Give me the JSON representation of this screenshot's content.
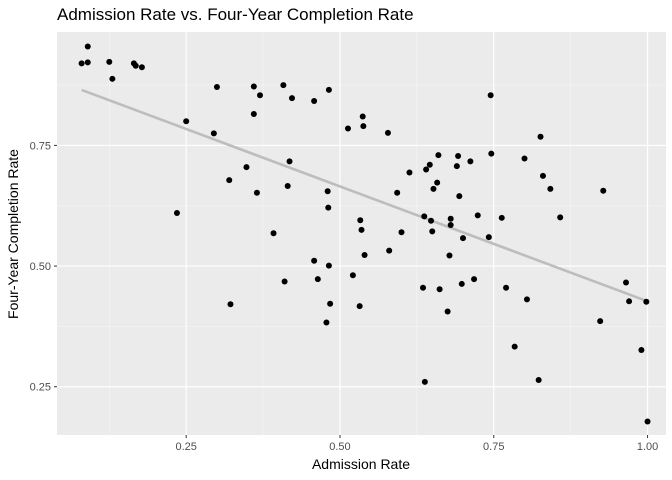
{
  "chart_data": {
    "type": "scatter",
    "title": "Admission Rate vs. Four-Year Completion Rate",
    "xlabel": "Admission Rate",
    "ylabel": "Four-Year Completion Rate",
    "xlim": [
      0.04,
      1.03
    ],
    "ylim": [
      0.15,
      0.985
    ],
    "x_ticks": [
      0.25,
      0.5,
      0.75,
      1.0
    ],
    "x_tick_labels": [
      "0.25",
      "0.50",
      "0.75",
      "1.00"
    ],
    "y_ticks": [
      0.25,
      0.5,
      0.75
    ],
    "y_tick_labels": [
      "0.25",
      "0.50",
      "0.75"
    ],
    "grid": true,
    "trend_line": {
      "x": [
        0.08,
        1.0
      ],
      "y": [
        0.865,
        0.427
      ]
    },
    "points": [
      [
        0.08,
        0.92
      ],
      [
        0.09,
        0.955
      ],
      [
        0.09,
        0.922
      ],
      [
        0.125,
        0.923
      ],
      [
        0.13,
        0.888
      ],
      [
        0.165,
        0.92
      ],
      [
        0.168,
        0.915
      ],
      [
        0.178,
        0.912
      ],
      [
        0.235,
        0.61
      ],
      [
        0.25,
        0.8
      ],
      [
        0.295,
        0.775
      ],
      [
        0.3,
        0.871
      ],
      [
        0.32,
        0.678
      ],
      [
        0.322,
        0.421
      ],
      [
        0.348,
        0.705
      ],
      [
        0.36,
        0.815
      ],
      [
        0.36,
        0.872
      ],
      [
        0.365,
        0.652
      ],
      [
        0.37,
        0.854
      ],
      [
        0.392,
        0.568
      ],
      [
        0.408,
        0.875
      ],
      [
        0.41,
        0.468
      ],
      [
        0.415,
        0.666
      ],
      [
        0.418,
        0.717
      ],
      [
        0.422,
        0.848
      ],
      [
        0.458,
        0.842
      ],
      [
        0.458,
        0.511
      ],
      [
        0.464,
        0.473
      ],
      [
        0.478,
        0.383
      ],
      [
        0.48,
        0.655
      ],
      [
        0.481,
        0.621
      ],
      [
        0.482,
        0.501
      ],
      [
        0.482,
        0.865
      ],
      [
        0.484,
        0.422
      ],
      [
        0.513,
        0.785
      ],
      [
        0.521,
        0.481
      ],
      [
        0.532,
        0.417
      ],
      [
        0.533,
        0.595
      ],
      [
        0.535,
        0.575
      ],
      [
        0.537,
        0.81
      ],
      [
        0.538,
        0.79
      ],
      [
        0.54,
        0.523
      ],
      [
        0.578,
        0.776
      ],
      [
        0.58,
        0.532
      ],
      [
        0.593,
        0.652
      ],
      [
        0.6,
        0.57
      ],
      [
        0.613,
        0.694
      ],
      [
        0.635,
        0.455
      ],
      [
        0.637,
        0.603
      ],
      [
        0.638,
        0.26
      ],
      [
        0.64,
        0.7
      ],
      [
        0.646,
        0.71
      ],
      [
        0.648,
        0.594
      ],
      [
        0.65,
        0.572
      ],
      [
        0.652,
        0.66
      ],
      [
        0.658,
        0.673
      ],
      [
        0.66,
        0.73
      ],
      [
        0.662,
        0.452
      ],
      [
        0.675,
        0.406
      ],
      [
        0.678,
        0.522
      ],
      [
        0.68,
        0.598
      ],
      [
        0.68,
        0.585
      ],
      [
        0.69,
        0.707
      ],
      [
        0.692,
        0.728
      ],
      [
        0.694,
        0.645
      ],
      [
        0.698,
        0.463
      ],
      [
        0.7,
        0.558
      ],
      [
        0.712,
        0.717
      ],
      [
        0.718,
        0.473
      ],
      [
        0.724,
        0.605
      ],
      [
        0.742,
        0.56
      ],
      [
        0.745,
        0.854
      ],
      [
        0.746,
        0.733
      ],
      [
        0.763,
        0.6
      ],
      [
        0.77,
        0.455
      ],
      [
        0.784,
        0.333
      ],
      [
        0.8,
        0.723
      ],
      [
        0.804,
        0.431
      ],
      [
        0.823,
        0.264
      ],
      [
        0.826,
        0.768
      ],
      [
        0.83,
        0.687
      ],
      [
        0.842,
        0.66
      ],
      [
        0.858,
        0.601
      ],
      [
        0.923,
        0.386
      ],
      [
        0.928,
        0.656
      ],
      [
        0.965,
        0.466
      ],
      [
        0.97,
        0.427
      ],
      [
        0.99,
        0.326
      ],
      [
        0.998,
        0.426
      ],
      [
        1.0,
        0.178
      ]
    ]
  }
}
